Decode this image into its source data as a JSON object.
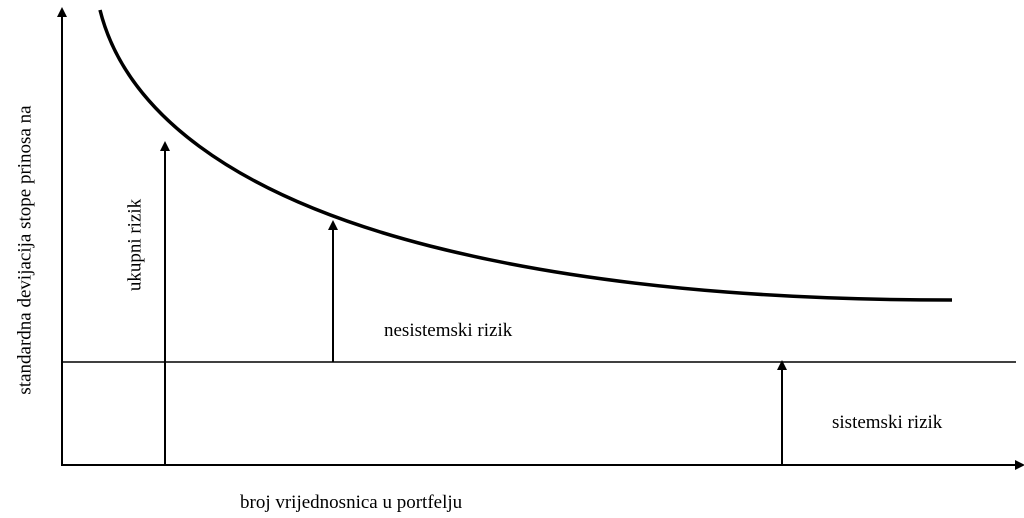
{
  "y_axis_label": "standardna devijacija stope prinosa na",
  "x_axis_label": "broj vrijednosnica u portfelju",
  "annotations": {
    "total": "ukupni rizik",
    "unsystematic": "nesistemski rizik",
    "systematic": "sistemski rizik"
  }
}
